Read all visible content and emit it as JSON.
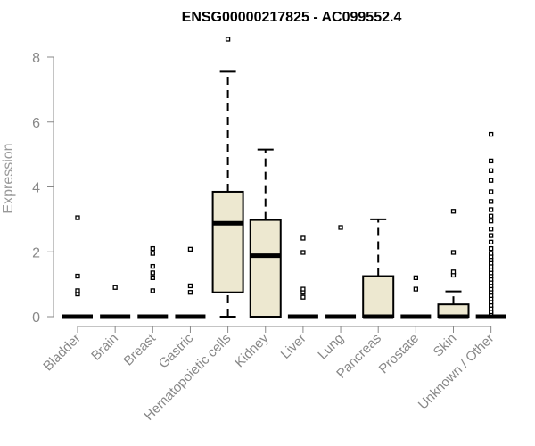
{
  "chart_data": {
    "type": "boxplot",
    "title": "ENSG00000217825 - AC099552.4",
    "ylabel": "Expression",
    "ylim": [
      0,
      8.6
    ],
    "yticks": [
      "0",
      "2",
      "4",
      "6",
      "8"
    ],
    "box_fill": "#ede8d0",
    "categories": [
      "Bladder",
      "Brain",
      "Breast",
      "Gastric",
      "Hematopoietic cells",
      "Kidney",
      "Liver",
      "Lung",
      "Pancreas",
      "Prostate",
      "Skin",
      "Unknown / Other"
    ],
    "boxes": [
      {
        "name": "Bladder",
        "q1": 0,
        "median": 0,
        "q3": 0,
        "whisker_low": 0,
        "whisker_high": 0,
        "outliers": [
          0.7,
          0.8,
          1.25,
          3.05
        ]
      },
      {
        "name": "Brain",
        "q1": 0,
        "median": 0,
        "q3": 0,
        "whisker_low": 0,
        "whisker_high": 0,
        "outliers": [
          0.9
        ]
      },
      {
        "name": "Breast",
        "q1": 0,
        "median": 0,
        "q3": 0,
        "whisker_low": 0,
        "whisker_high": 0,
        "outliers": [
          0.8,
          1.2,
          1.35,
          1.55,
          1.95,
          2.1
        ]
      },
      {
        "name": "Gastric",
        "q1": 0,
        "median": 0,
        "q3": 0,
        "whisker_low": 0,
        "whisker_high": 0,
        "outliers": [
          0.75,
          0.95,
          2.08
        ]
      },
      {
        "name": "Hematopoietic cells",
        "q1": 0.75,
        "median": 2.88,
        "q3": 3.85,
        "whisker_low": 0,
        "whisker_high": 7.55,
        "outliers": [
          8.55
        ]
      },
      {
        "name": "Kidney",
        "q1": 0,
        "median": 1.88,
        "q3": 2.98,
        "whisker_low": 0,
        "whisker_high": 5.15,
        "outliers": []
      },
      {
        "name": "Liver",
        "q1": 0,
        "median": 0,
        "q3": 0,
        "whisker_low": 0,
        "whisker_high": 0,
        "outliers": [
          0.6,
          0.75,
          0.85,
          1.98,
          2.42
        ]
      },
      {
        "name": "Lung",
        "q1": 0,
        "median": 0,
        "q3": 0,
        "whisker_low": 0,
        "whisker_high": 0,
        "outliers": [
          2.75
        ]
      },
      {
        "name": "Pancreas",
        "q1": 0,
        "median": 0,
        "q3": 1.25,
        "whisker_low": 0,
        "whisker_high": 3.0,
        "outliers": []
      },
      {
        "name": "Prostate",
        "q1": 0,
        "median": 0,
        "q3": 0,
        "whisker_low": 0,
        "whisker_high": 0,
        "outliers": [
          0.85,
          1.2
        ]
      },
      {
        "name": "Skin",
        "q1": 0,
        "median": 0,
        "q3": 0.38,
        "whisker_low": 0,
        "whisker_high": 0.78,
        "outliers": [
          1.28,
          1.38,
          1.98,
          3.25
        ]
      },
      {
        "name": "Unknown / Other",
        "q1": 0,
        "median": 0,
        "q3": 0,
        "whisker_low": 0,
        "whisker_high": 0,
        "outliers": [
          0.1,
          0.15,
          0.25,
          0.35,
          0.45,
          0.55,
          0.65,
          0.75,
          0.85,
          0.95,
          1.05,
          1.15,
          1.25,
          1.35,
          1.45,
          1.55,
          1.65,
          1.75,
          1.85,
          1.95,
          2.1,
          2.3,
          2.5,
          2.7,
          2.95,
          3.1,
          3.3,
          3.55,
          3.85,
          4.2,
          4.5,
          4.8,
          5.62
        ]
      }
    ],
    "grid": false,
    "legend": "none"
  }
}
